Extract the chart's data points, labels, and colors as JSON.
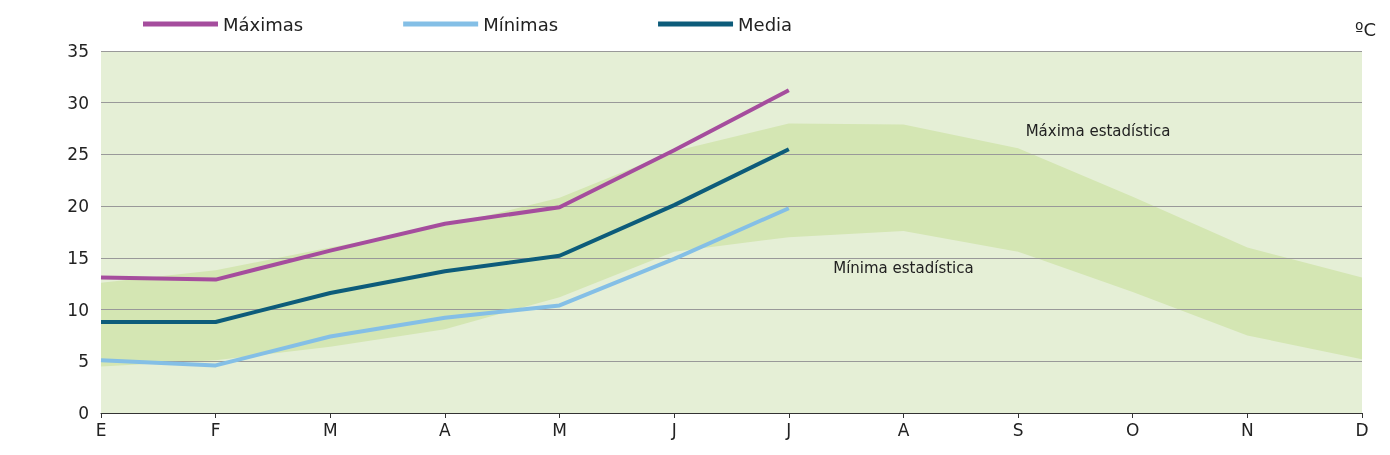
{
  "chart_data": {
    "type": "line",
    "ylabel": "ºC",
    "categories": [
      "E",
      "F",
      "M",
      "A",
      "M",
      "J",
      "J",
      "A",
      "S",
      "O",
      "N",
      "D"
    ],
    "series": [
      {
        "name": "Máxima estadística",
        "type": "area",
        "color": "#d4e6b3",
        "values": [
          12.6,
          13.8,
          16.0,
          18.1,
          20.8,
          25.3,
          28.0,
          27.9,
          25.6,
          20.9,
          16.0,
          13.1
        ]
      },
      {
        "name": "Mínima estadística",
        "type": "area",
        "color": "#e5efd6",
        "values": [
          4.5,
          5.1,
          6.4,
          8.1,
          11.2,
          15.6,
          17.0,
          17.6,
          15.6,
          11.7,
          7.5,
          5.2
        ]
      },
      {
        "name": "Máximas",
        "color": "#a54d9d",
        "values": [
          13.1,
          12.9,
          15.7,
          18.3,
          19.9,
          25.4,
          31.2,
          null,
          null,
          null,
          null,
          null
        ]
      },
      {
        "name": "Mínimas",
        "color": "#84bfe6",
        "values": [
          5.1,
          4.6,
          7.4,
          9.2,
          10.4,
          14.9,
          19.8,
          null,
          null,
          null,
          null,
          null
        ]
      },
      {
        "name": "Media",
        "color": "#0d5c7a",
        "values": [
          8.8,
          8.8,
          11.6,
          13.7,
          15.2,
          20.1,
          25.5,
          null,
          null,
          null,
          null,
          null
        ]
      }
    ],
    "ylim": [
      0,
      35
    ],
    "yticks": [
      0,
      5,
      10,
      15,
      20,
      25,
      30,
      35
    ],
    "grid": "y",
    "legend": "top",
    "marker": "none",
    "line_style": "solid"
  }
}
